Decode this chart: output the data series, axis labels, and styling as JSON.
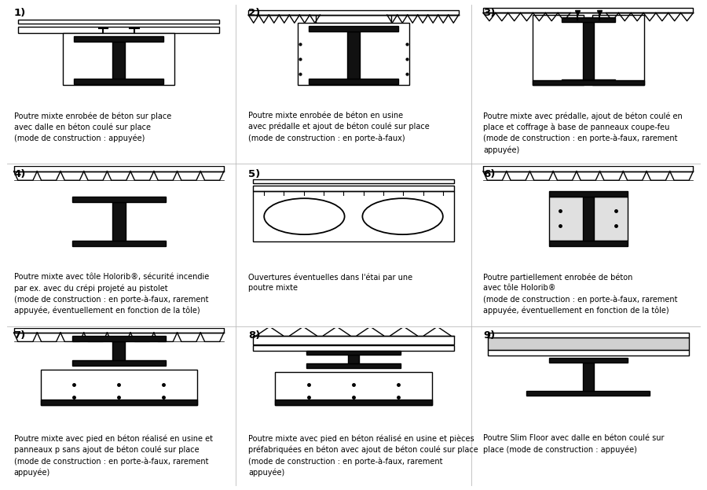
{
  "captions": [
    "Poutre mixte enrobée de béton sur place\navec dalle en béton coulé sur place\n(mode de construction : appuyée)",
    "Poutre mixte enrobée de béton en usine\navec prédalle et ajout de béton coulé sur place\n(mode de construction : en porte-à-faux)",
    "Poutre mixte avec prédalle, ajout de béton coulé en\nplace et coffrage à base de panneaux coupe-feu\n(mode de construction : en porte-à-faux, rarement\nappuyée)",
    "Poutre mixte avec tôle Holorib®, sécurité incendie\npar ex. avec du crépi projeté au pistolet\n(mode de construction : en porte-à-faux, rarement\nappuyée, éventuellement en fonction de la tôle)",
    "Ouvertures éventuelles dans l'étai par une\npoutre mixte",
    "Poutre partiellement enrobée de béton\navec tôle Holorib®\n(mode de construction : en porte-à-faux, rarement\nappuyée, éventuellement en fonction de la tôle)",
    "Poutre mixte avec pied en béton réalisé en usine et\npanneaux p sans ajout de béton coulé sur place\n(mode de construction : en porte-à-faux, rarement\nappuyée)",
    "Poutre mixte avec pied en béton réalisé en usine et pièces\npréfabriquées en béton avec ajout de béton coulé sur place\n(mode de construction : en porte-à-faux, rarement\nappuyée)",
    "Poutre Slim Floor avec dalle en béton coulé sur\nplace (mode de construction : appuyée)"
  ],
  "numbers": [
    "1)",
    "2)",
    "3)",
    "4)",
    "5)",
    "6)",
    "7)",
    "8)",
    "9)"
  ],
  "bg": "#ffffff",
  "lc": "#000000",
  "fc": "#111111",
  "caption_fontsize": 7.0,
  "number_fontsize": 9.5
}
